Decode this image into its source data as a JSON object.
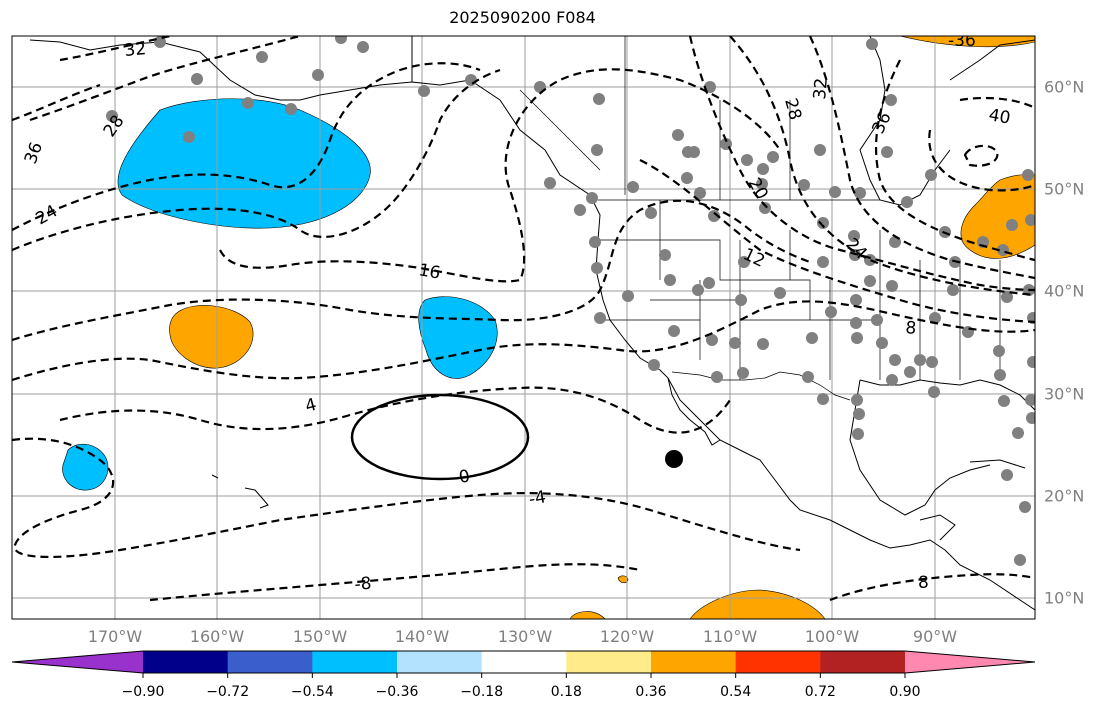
{
  "title": "2025090200 F084",
  "map": {
    "lon_labels": [
      "170°W",
      "160°W",
      "150°W",
      "140°W",
      "130°W",
      "120°W",
      "110°W",
      "100°W",
      "90°W"
    ],
    "lat_labels": [
      "60°N",
      "50°N",
      "40°N",
      "30°N",
      "20°N",
      "10°N"
    ],
    "contour_labels": [
      "32",
      "28",
      "36",
      "24",
      "16",
      "4",
      "0",
      "-4",
      "-8",
      "8",
      "12",
      "20",
      "24",
      "28",
      "32",
      "36",
      "40",
      "-36",
      "8"
    ]
  },
  "colorbar": {
    "tick_labels": [
      "−0.90",
      "−0.72",
      "−0.54",
      "−0.36",
      "−0.18",
      "0.18",
      "0.36",
      "0.54",
      "0.72",
      "0.90"
    ],
    "colors": [
      "#9932CC",
      "#00008B",
      "#3A5FCD",
      "#00BFFF",
      "#B2E2FF",
      "#FFFFFF",
      "#FFEB8A",
      "#FFA500",
      "#FF3300",
      "#B22222",
      "#FF88B0"
    ]
  }
}
